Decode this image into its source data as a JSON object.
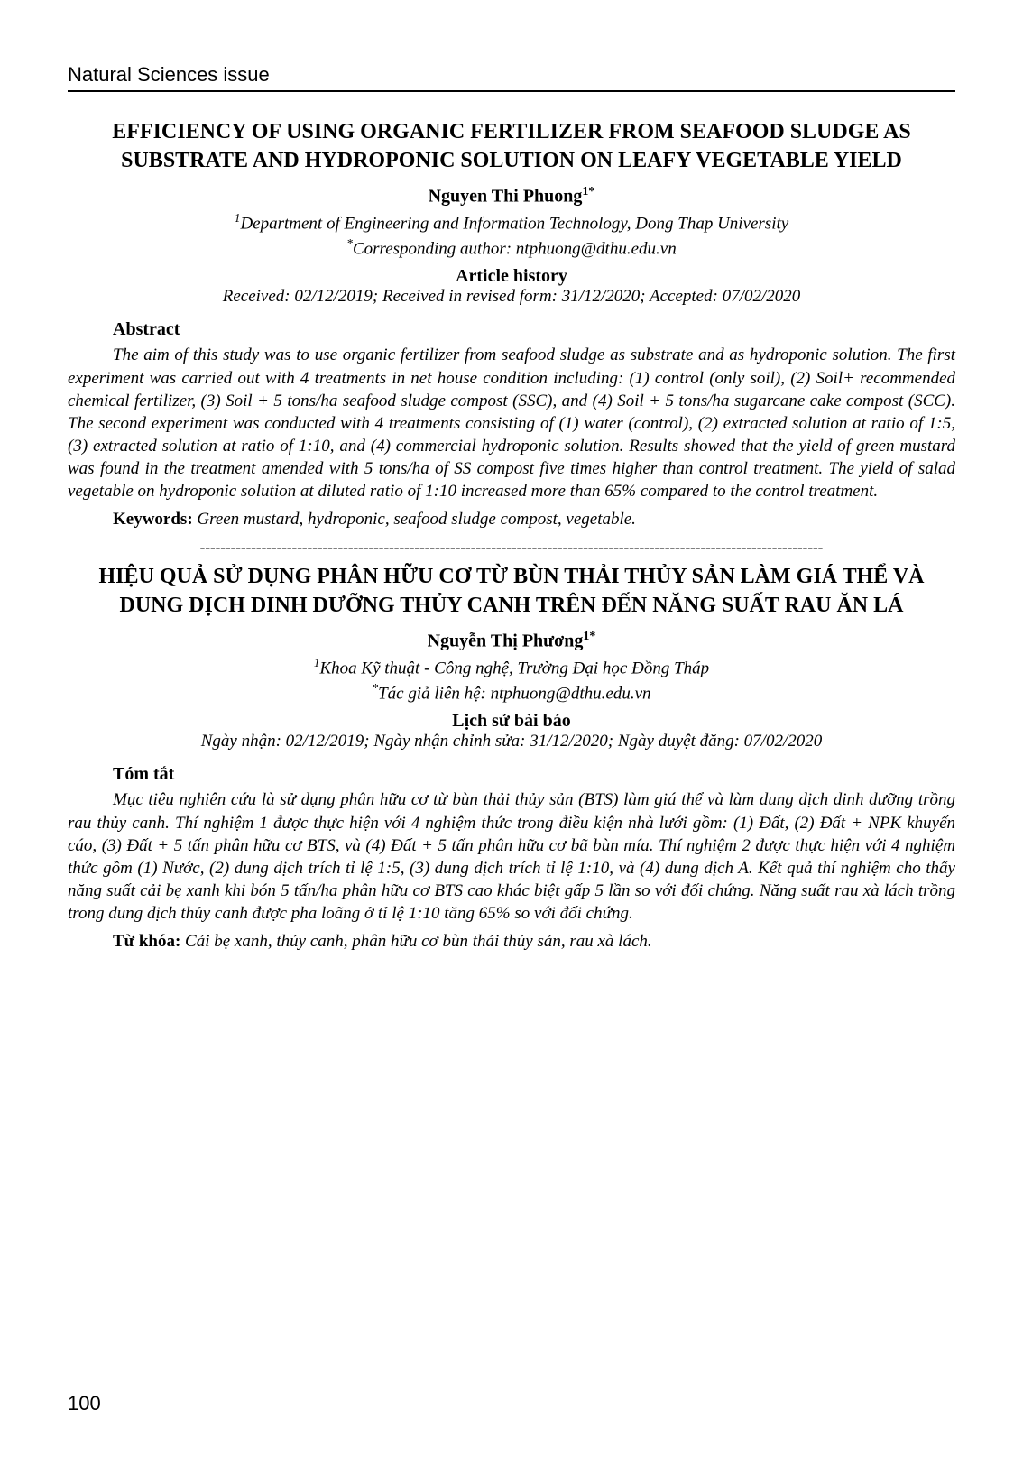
{
  "journal_header": "Natural Sciences issue",
  "page_number": "100",
  "en": {
    "title": "EFFICIENCY OF USING ORGANIC FERTILIZER FROM SEAFOOD SLUDGE AS SUBSTRATE AND HYDROPONIC SOLUTION ON LEAFY VEGETABLE YIELD",
    "author": "Nguyen Thi Phuong",
    "author_sup": "1*",
    "affiliation_sup": "1",
    "affiliation": "Department of Engineering and Information Technology, Dong Thap University",
    "corr_sup": "*",
    "corresponding": "Corresponding author: ntphuong@dthu.edu.vn",
    "history_h": "Article history",
    "history": "Received: 02/12/2019; Received in revised form: 31/12/2020; Accepted: 07/02/2020",
    "abstract_h": "Abstract",
    "abstract": "The aim of this study was to use organic fertilizer from seafood sludge as substrate and as hydroponic solution. The first experiment was carried out with 4 treatments in net house condition including: (1) control (only soil), (2) Soil+ recommended chemical fertilizer, (3) Soil + 5 tons/ha seafood sludge compost (SSC), and (4) Soil + 5 tons/ha sugarcane cake compost (SCC). The second experiment was conducted with 4 treatments consisting of (1) water (control), (2) extracted solution at ratio of 1:5, (3) extracted solution at ratio of 1:10, and (4) commercial hydroponic solution. Results showed that the yield of green mustard was found in the treatment amended with 5 tons/ha of SS compost five times higher than control treatment. The yield of salad vegetable on hydroponic solution at diluted ratio of 1:10 increased more than 65% compared to the control treatment.",
    "keywords_label": "Keywords:",
    "keywords": " Green mustard, hydroponic, seafood sludge compost, vegetable."
  },
  "vi": {
    "title": "HIỆU QUẢ SỬ DỤNG PHÂN HỮU CƠ TỪ BÙN THẢI THỦY SẢN LÀM GIÁ THỂ VÀ DUNG DỊCH DINH DƯỠNG THỦY CANH TRÊN ĐẾN NĂNG SUẤT RAU ĂN LÁ",
    "author": "Nguyễn Thị Phương",
    "author_sup": "1*",
    "affiliation_sup": "1",
    "affiliation": "Khoa Kỹ thuật - Công nghệ, Trường Đại học Đồng Tháp",
    "corr_sup": "*",
    "corresponding": "Tác giả liên hệ: ntphuong@dthu.edu.vn",
    "history_h": "Lịch sử bài báo",
    "history": "Ngày nhận: 02/12/2019; Ngày nhận chỉnh sửa: 31/12/2020; Ngày duyệt đăng: 07/02/2020",
    "abstract_h": "Tóm tắt",
    "abstract": "Mục tiêu nghiên cứu là sử dụng phân hữu cơ từ bùn thải thủy sản (BTS) làm giá thể và làm dung dịch dinh dưỡng trồng rau thủy canh. Thí nghiệm 1 được thực hiện với 4 nghiệm thức trong điều kiện nhà lưới gồm: (1) Đất, (2) Đất + NPK khuyến cáo, (3) Đất + 5 tấn phân hữu cơ BTS, và (4) Đất + 5 tấn phân hữu cơ bã bùn mía. Thí nghiệm 2 được thực hiện với 4 nghiệm thức gồm (1) Nước, (2) dung dịch trích tỉ lệ 1:5, (3) dung dịch trích tỉ lệ 1:10, và (4) dung dịch A. Kết quả thí nghiệm cho thấy năng suất cải bẹ xanh khi bón 5 tấn/ha phân hữu cơ BTS cao khác biệt gấp 5 lần so với đối chứng. Năng suất rau xà lách trồng trong dung dịch thủy canh được pha loãng ở tỉ lệ 1:10 tăng 65% so với đối chứng.",
    "keywords_label": "Từ khóa:",
    "keywords": " Cải bẹ xanh, thủy canh, phân hữu cơ bùn thải thủy sản, rau xà lách."
  },
  "separator": "--------------------------------------------------------------------------------------------------------------------------",
  "colors": {
    "text": "#000000",
    "background": "#ffffff",
    "rule": "#000000"
  },
  "fonts": {
    "body_family": "Times New Roman",
    "header_family": "Arial",
    "body_size_pt": 14,
    "title_size_pt": 18
  }
}
